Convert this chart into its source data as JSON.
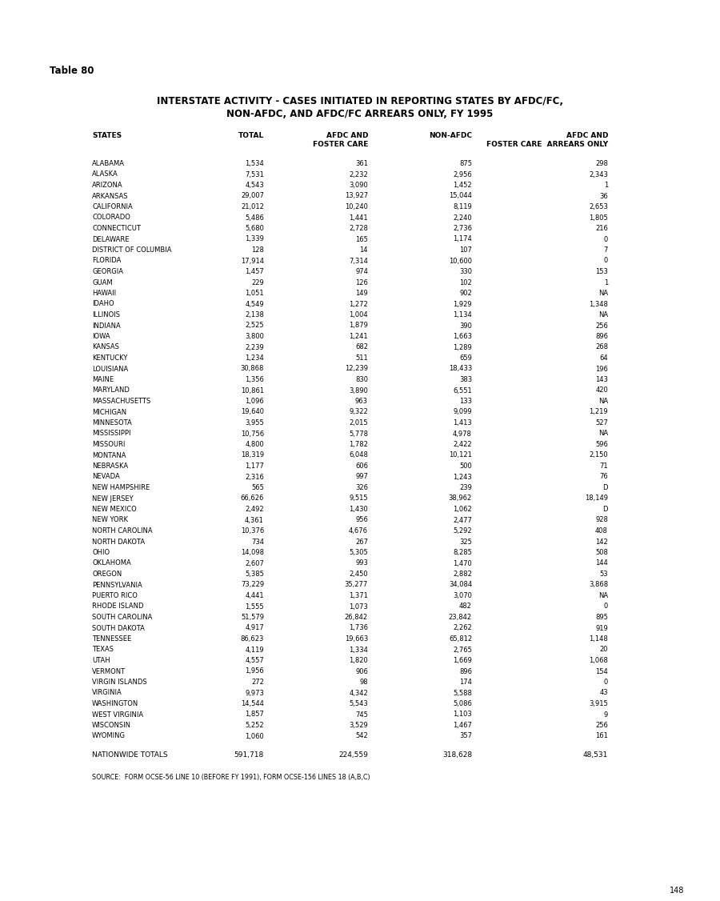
{
  "table_number": "Table 80",
  "title_line1": "INTERSTATE ACTIVITY - CASES INITIATED IN REPORTING STATES BY AFDC/FC,",
  "title_line2": "NON-AFDC, AND AFDC/FC ARREARS ONLY, FY 1995",
  "rows": [
    [
      "ALABAMA",
      "1,534",
      "361",
      "875",
      "298"
    ],
    [
      "ALASKA",
      "7,531",
      "2,232",
      "2,956",
      "2,343"
    ],
    [
      "ARIZONA",
      "4,543",
      "3,090",
      "1,452",
      "1"
    ],
    [
      "ARKANSAS",
      "29,007",
      "13,927",
      "15,044",
      "36"
    ],
    [
      "CALIFORNIA",
      "21,012",
      "10,240",
      "8,119",
      "2,653"
    ],
    [
      "COLORADO",
      "5,486",
      "1,441",
      "2,240",
      "1,805"
    ],
    [
      "CONNECTICUT",
      "5,680",
      "2,728",
      "2,736",
      "216"
    ],
    [
      "DELAWARE",
      "1,339",
      "165",
      "1,174",
      "0"
    ],
    [
      "DISTRICT OF COLUMBIA",
      "128",
      "14",
      "107",
      "7"
    ],
    [
      "FLORIDA",
      "17,914",
      "7,314",
      "10,600",
      "0"
    ],
    [
      "GEORGIA",
      "1,457",
      "974",
      "330",
      "153"
    ],
    [
      "GUAM",
      "229",
      "126",
      "102",
      "1"
    ],
    [
      "HAWAII",
      "1,051",
      "149",
      "902",
      "NA"
    ],
    [
      "IDAHO",
      "4,549",
      "1,272",
      "1,929",
      "1,348"
    ],
    [
      "ILLINOIS",
      "2,138",
      "1,004",
      "1,134",
      "NA"
    ],
    [
      "INDIANA",
      "2,525",
      "1,879",
      "390",
      "256"
    ],
    [
      "IOWA",
      "3,800",
      "1,241",
      "1,663",
      "896"
    ],
    [
      "KANSAS",
      "2,239",
      "682",
      "1,289",
      "268"
    ],
    [
      "KENTUCKY",
      "1,234",
      "511",
      "659",
      "64"
    ],
    [
      "LOUISIANA",
      "30,868",
      "12,239",
      "18,433",
      "196"
    ],
    [
      "MAINE",
      "1,356",
      "830",
      "383",
      "143"
    ],
    [
      "MARYLAND",
      "10,861",
      "3,890",
      "6,551",
      "420"
    ],
    [
      "MASSACHUSETTS",
      "1,096",
      "963",
      "133",
      "NA"
    ],
    [
      "MICHIGAN",
      "19,640",
      "9,322",
      "9,099",
      "1,219"
    ],
    [
      "MINNESOTA",
      "3,955",
      "2,015",
      "1,413",
      "527"
    ],
    [
      "MISSISSIPPI",
      "10,756",
      "5,778",
      "4,978",
      "NA"
    ],
    [
      "MISSOURI",
      "4,800",
      "1,782",
      "2,422",
      "596"
    ],
    [
      "MONTANA",
      "18,319",
      "6,048",
      "10,121",
      "2,150"
    ],
    [
      "NEBRASKA",
      "1,177",
      "606",
      "500",
      "71"
    ],
    [
      "NEVADA",
      "2,316",
      "997",
      "1,243",
      "76"
    ],
    [
      "NEW HAMPSHIRE",
      "565",
      "326",
      "239",
      "D"
    ],
    [
      "NEW JERSEY",
      "66,626",
      "9,515",
      "38,962",
      "18,149"
    ],
    [
      "NEW MEXICO",
      "2,492",
      "1,430",
      "1,062",
      "D"
    ],
    [
      "NEW YORK",
      "4,361",
      "956",
      "2,477",
      "928"
    ],
    [
      "NORTH CAROLINA",
      "10,376",
      "4,676",
      "5,292",
      "408"
    ],
    [
      "NORTH DAKOTA",
      "734",
      "267",
      "325",
      "142"
    ],
    [
      "OHIO",
      "14,098",
      "5,305",
      "8,285",
      "508"
    ],
    [
      "OKLAHOMA",
      "2,607",
      "993",
      "1,470",
      "144"
    ],
    [
      "OREGON",
      "5,385",
      "2,450",
      "2,882",
      "53"
    ],
    [
      "PENNSYLVANIA",
      "73,229",
      "35,277",
      "34,084",
      "3,868"
    ],
    [
      "PUERTO RICO",
      "4,441",
      "1,371",
      "3,070",
      "NA"
    ],
    [
      "RHODE ISLAND",
      "1,555",
      "1,073",
      "482",
      "0"
    ],
    [
      "SOUTH CAROLINA",
      "51,579",
      "26,842",
      "23,842",
      "895"
    ],
    [
      "SOUTH DAKOTA",
      "4,917",
      "1,736",
      "2,262",
      "919"
    ],
    [
      "TENNESSEE",
      "86,623",
      "19,663",
      "65,812",
      "1,148"
    ],
    [
      "TEXAS",
      "4,119",
      "1,334",
      "2,765",
      "20"
    ],
    [
      "UTAH",
      "4,557",
      "1,820",
      "1,669",
      "1,068"
    ],
    [
      "VERMONT",
      "1,956",
      "906",
      "896",
      "154"
    ],
    [
      "VIRGIN ISLANDS",
      "272",
      "98",
      "174",
      "0"
    ],
    [
      "VIRGINIA",
      "9,973",
      "4,342",
      "5,588",
      "43"
    ],
    [
      "WASHINGTON",
      "14,544",
      "5,543",
      "5,086",
      "3,915"
    ],
    [
      "WEST VIRGINIA",
      "1,857",
      "745",
      "1,103",
      "9"
    ],
    [
      "WISCONSIN",
      "5,252",
      "3,529",
      "1,467",
      "256"
    ],
    [
      "WYOMING",
      "1,060",
      "542",
      "357",
      "161"
    ]
  ],
  "totals_row": [
    "NATIONWIDE TOTALS",
    "591,718",
    "224,559",
    "318,628",
    "48,531"
  ],
  "source_text": "SOURCE:  FORM OCSE-56 LINE 10 (BEFORE FY 1991), FORM OCSE-156 LINES 18 (A,B,C)",
  "page_number": "148",
  "bg_color": "#e8e8e8",
  "text_color": "#000000"
}
